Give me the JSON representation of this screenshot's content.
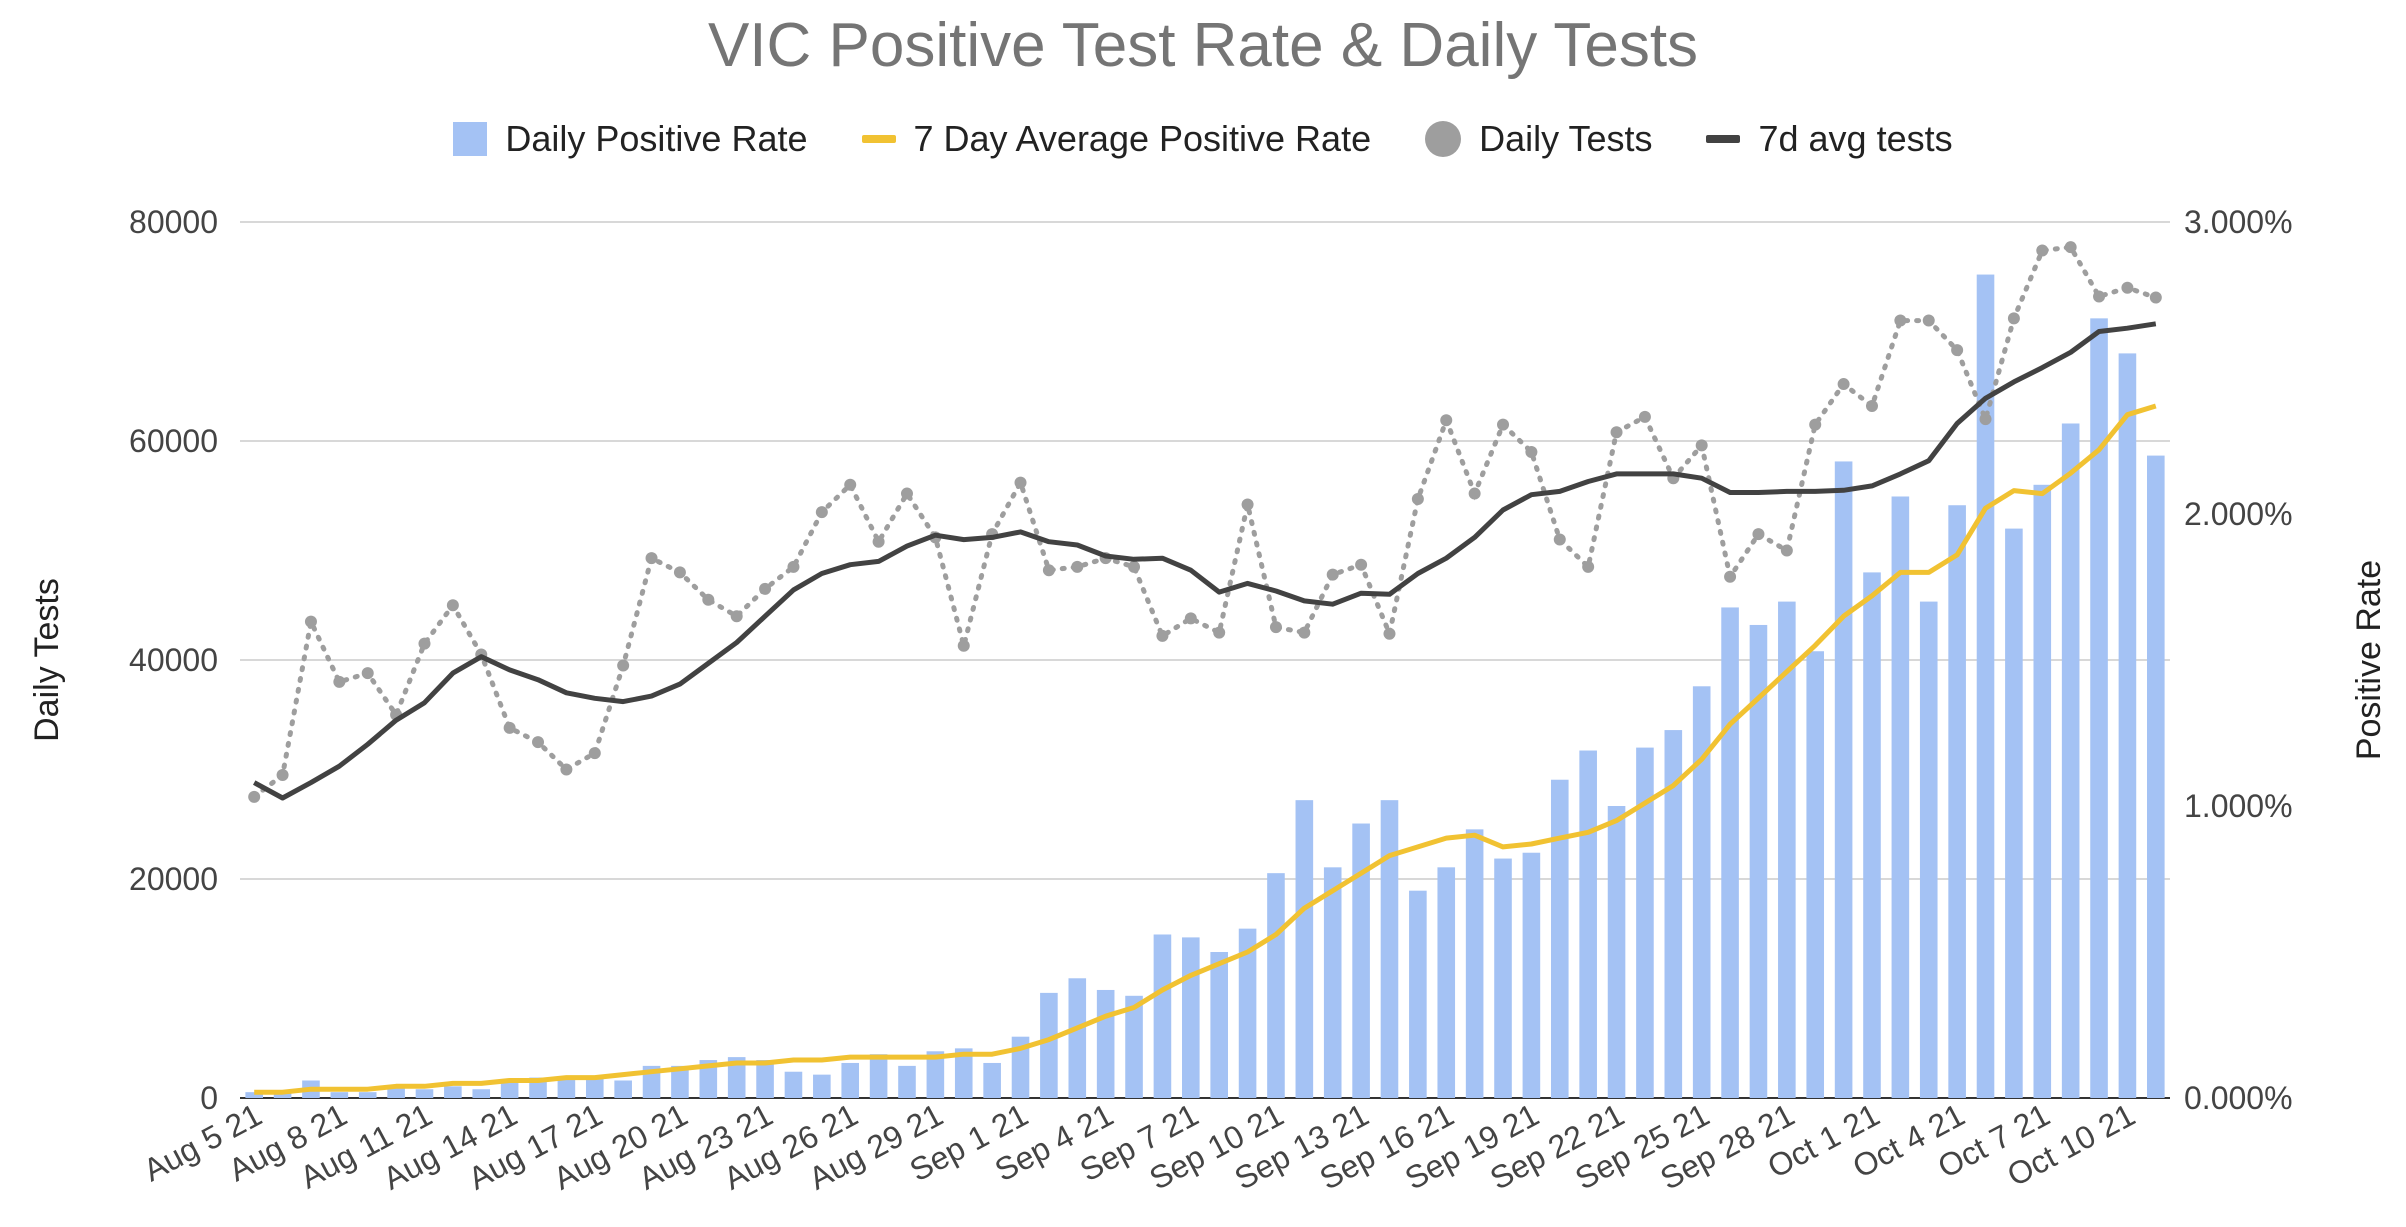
{
  "chart_data": {
    "type": "bar",
    "title": "VIC Positive Test Rate & Daily Tests",
    "ylabel_left": "Daily Tests",
    "ylabel_right": "Positive Rate",
    "ylim_left": [
      0,
      80000
    ],
    "ylim_right": [
      0,
      3.0
    ],
    "yticks_left": [
      "0",
      "20000",
      "40000",
      "60000",
      "80000"
    ],
    "yticks_right": [
      "0.000%",
      "1.000%",
      "2.000%",
      "3.000%"
    ],
    "xtick_labels": [
      "Aug 5 21",
      "Aug 8 21",
      "Aug 11 21",
      "Aug 14 21",
      "Aug 17 21",
      "Aug 20 21",
      "Aug 23 21",
      "Aug 26 21",
      "Aug 29 21",
      "Sep 1 21",
      "Sep 4 21",
      "Sep 7 21",
      "Sep 10 21",
      "Sep 13 21",
      "Sep 16 21",
      "Sep 19 21",
      "Sep 22 21",
      "Sep 25 21",
      "Sep 28 21",
      "Oct 1 21",
      "Oct 4 21",
      "Oct 7 21",
      "Oct 10 21"
    ],
    "grid": true,
    "legend_position": "top",
    "series": [
      {
        "name": "Daily Positive Rate",
        "type": "bar",
        "axis": "right",
        "color": "#a4c2f4",
        "values": [
          0.02,
          0.02,
          0.06,
          0.02,
          0.02,
          0.04,
          0.03,
          0.04,
          0.03,
          0.06,
          0.07,
          0.07,
          0.07,
          0.06,
          0.11,
          0.11,
          0.13,
          0.14,
          0.13,
          0.09,
          0.08,
          0.12,
          0.15,
          0.11,
          0.16,
          0.17,
          0.12,
          0.21,
          0.36,
          0.41,
          0.37,
          0.35,
          0.56,
          0.55,
          0.5,
          0.58,
          0.77,
          1.02,
          0.79,
          0.94,
          1.02,
          0.71,
          0.79,
          0.92,
          0.82,
          0.84,
          1.09,
          1.19,
          1.0,
          1.2,
          1.26,
          1.41,
          1.68,
          1.62,
          1.7,
          1.53,
          2.18,
          1.8,
          2.06,
          1.7,
          2.03,
          2.82,
          1.95,
          2.1,
          2.31,
          2.67,
          2.55,
          2.2
        ]
      },
      {
        "name": "7 Day Average Positive Rate",
        "type": "line",
        "axis": "right",
        "color": "#f1c232",
        "values": [
          0.02,
          0.02,
          0.03,
          0.03,
          0.03,
          0.04,
          0.04,
          0.05,
          0.05,
          0.06,
          0.06,
          0.07,
          0.07,
          0.08,
          0.09,
          0.1,
          0.11,
          0.12,
          0.12,
          0.13,
          0.13,
          0.14,
          0.14,
          0.14,
          0.14,
          0.15,
          0.15,
          0.17,
          0.2,
          0.24,
          0.28,
          0.31,
          0.37,
          0.42,
          0.46,
          0.5,
          0.56,
          0.65,
          0.71,
          0.77,
          0.83,
          0.86,
          0.89,
          0.9,
          0.86,
          0.87,
          0.89,
          0.91,
          0.95,
          1.01,
          1.07,
          1.16,
          1.28,
          1.37,
          1.46,
          1.55,
          1.65,
          1.72,
          1.8,
          1.8,
          1.86,
          2.02,
          2.08,
          2.07,
          2.14,
          2.22,
          2.34,
          2.37
        ]
      },
      {
        "name": "Daily Tests",
        "type": "dotted-line",
        "axis": "left",
        "color": "#9e9e9e",
        "values": [
          27500,
          29500,
          43500,
          38000,
          38800,
          35000,
          41500,
          45000,
          40500,
          33800,
          32500,
          30000,
          31500,
          39500,
          49300,
          48000,
          45500,
          44000,
          46500,
          48500,
          53500,
          56000,
          50800,
          55200,
          51200,
          41300,
          51500,
          56200,
          48200,
          48500,
          49300,
          48500,
          42200,
          43800,
          42500,
          54200,
          43000,
          42500,
          47800,
          48700,
          42400,
          54700,
          61900,
          55200,
          61500,
          59000,
          51000,
          48500,
          60800,
          62200,
          56600,
          59600,
          47600,
          51500,
          50000,
          61500,
          65200,
          63200,
          71000,
          71000,
          68300,
          62000,
          71200,
          77400,
          77700,
          73200,
          74000,
          73100
        ]
      },
      {
        "name": "7d avg tests",
        "type": "line",
        "axis": "left",
        "color": "#424242",
        "values": [
          28800,
          27400,
          28800,
          30300,
          32300,
          34500,
          36100,
          38800,
          40300,
          39100,
          38200,
          37000,
          36500,
          36200,
          36700,
          37800,
          39700,
          41600,
          44000,
          46400,
          47900,
          48700,
          49000,
          50400,
          51400,
          51000,
          51200,
          51700,
          50800,
          50500,
          49500,
          49200,
          49300,
          48200,
          46200,
          47000,
          46300,
          45400,
          45100,
          46100,
          46000,
          47900,
          49300,
          51200,
          53700,
          55100,
          55400,
          56300,
          57000,
          57000,
          57000,
          56600,
          55300,
          55300,
          55400,
          55400,
          55500,
          55900,
          57000,
          58200,
          61600,
          63900,
          65400,
          66700,
          68100,
          70000,
          70300,
          70700
        ]
      }
    ]
  }
}
